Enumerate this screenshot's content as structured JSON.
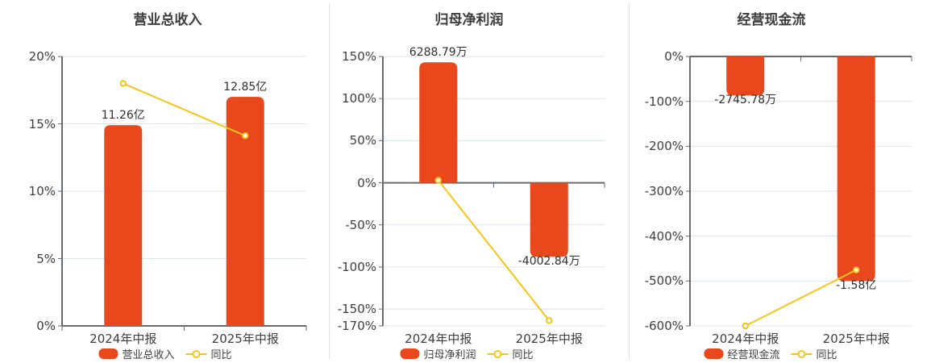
{
  "theme": {
    "bar_color": "#e8481c",
    "line_color": "#f6c517",
    "title_color": "#3d3d3d",
    "tick_label_color": "#3e3e3e",
    "value_label_color": "#2f2f2f",
    "grid_color": "#dce3ec",
    "axis_color": "#666b70",
    "divider_color": "#e2e2e7",
    "marker_fill": "#ffffff",
    "background": "#ffffff"
  },
  "chart_data": [
    {
      "type": "bar",
      "title": "营业总收入",
      "categories": [
        "2024年中报",
        "2025年中报"
      ],
      "bar_series": {
        "name": "营业总收入",
        "value_labels": [
          "11.26亿",
          "12.85亿"
        ],
        "plotted_axis_values": [
          14.9,
          17.0
        ]
      },
      "line_series": {
        "name": "同比",
        "values_percent": [
          18,
          14.12
        ]
      },
      "y_axis": {
        "min": 0,
        "max": 20,
        "ticks": [
          20,
          15,
          10,
          5,
          0
        ],
        "tick_labels": [
          "20%",
          "15%",
          "10%",
          "5%",
          "0%"
        ]
      },
      "grid": true,
      "legend_position": "bottom"
    },
    {
      "type": "bar",
      "title": "归母净利润",
      "categories": [
        "2024年中报",
        "2025年中报"
      ],
      "bar_series": {
        "name": "归母净利润",
        "value_labels": [
          "6288.79万",
          "-4002.84万"
        ],
        "plotted_axis_values": [
          143,
          -88
        ]
      },
      "line_series": {
        "name": "同比",
        "values_percent": [
          3,
          -163.65
        ]
      },
      "y_axis": {
        "min": -170,
        "max": 150,
        "ticks": [
          150,
          100,
          50,
          0,
          -50,
          -100,
          -150,
          -170
        ],
        "tick_labels": [
          "150%",
          "100%",
          "50%",
          "0%",
          "-50%",
          "-100%",
          "-150%",
          "-170%"
        ]
      },
      "grid": true,
      "legend_position": "bottom"
    },
    {
      "type": "bar",
      "title": "经营现金流",
      "categories": [
        "2024年中报",
        "2025年中报"
      ],
      "bar_series": {
        "name": "经营现金流",
        "value_labels": [
          "-2745.78万",
          "-1.58亿"
        ],
        "plotted_axis_values": [
          -87,
          -500
        ]
      },
      "line_series": {
        "name": "同比",
        "values_percent": [
          -600,
          -475.4
        ]
      },
      "y_axis": {
        "min": -600,
        "max": 0,
        "ticks": [
          0,
          -100,
          -200,
          -300,
          -400,
          -500,
          -600
        ],
        "tick_labels": [
          "0%",
          "-100%",
          "-200%",
          "-300%",
          "-400%",
          "-500%",
          "-600%"
        ]
      },
      "grid": true,
      "legend_position": "bottom"
    }
  ]
}
